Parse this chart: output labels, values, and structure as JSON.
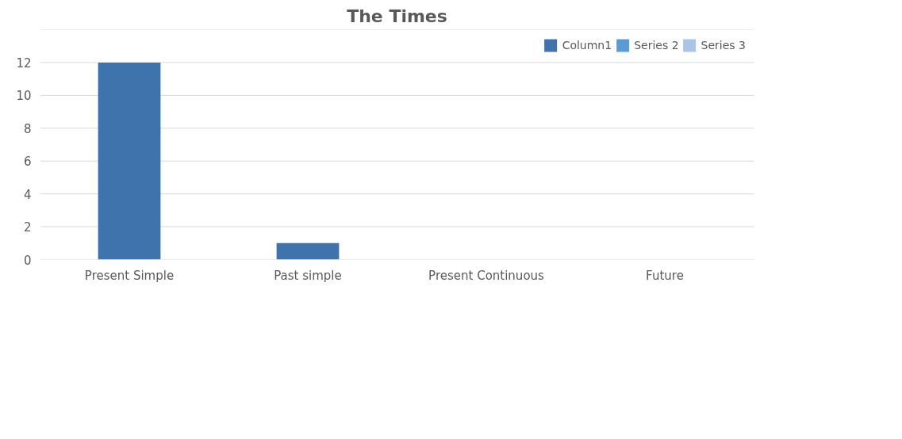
{
  "chart_data": {
    "type": "bar",
    "title": "The Times",
    "categories": [
      "Present Simple",
      "Past simple",
      "Present Continuous",
      "Future"
    ],
    "series": [
      {
        "name": "Column1",
        "color": "#3f73ab",
        "values": [
          12,
          1,
          0,
          0
        ]
      },
      {
        "name": "Series 2",
        "color": "#5b9bd5",
        "values": [
          null,
          null,
          null,
          null
        ]
      },
      {
        "name": "Series 3",
        "color": "#a9c4e8",
        "values": [
          null,
          null,
          null,
          null
        ]
      }
    ],
    "ylim": [
      0,
      14
    ],
    "yticks": [
      0,
      2,
      4,
      6,
      8,
      10,
      12,
      {
        "value": 14,
        "label": null
      }
    ],
    "grid": "y",
    "legend": "top right"
  }
}
